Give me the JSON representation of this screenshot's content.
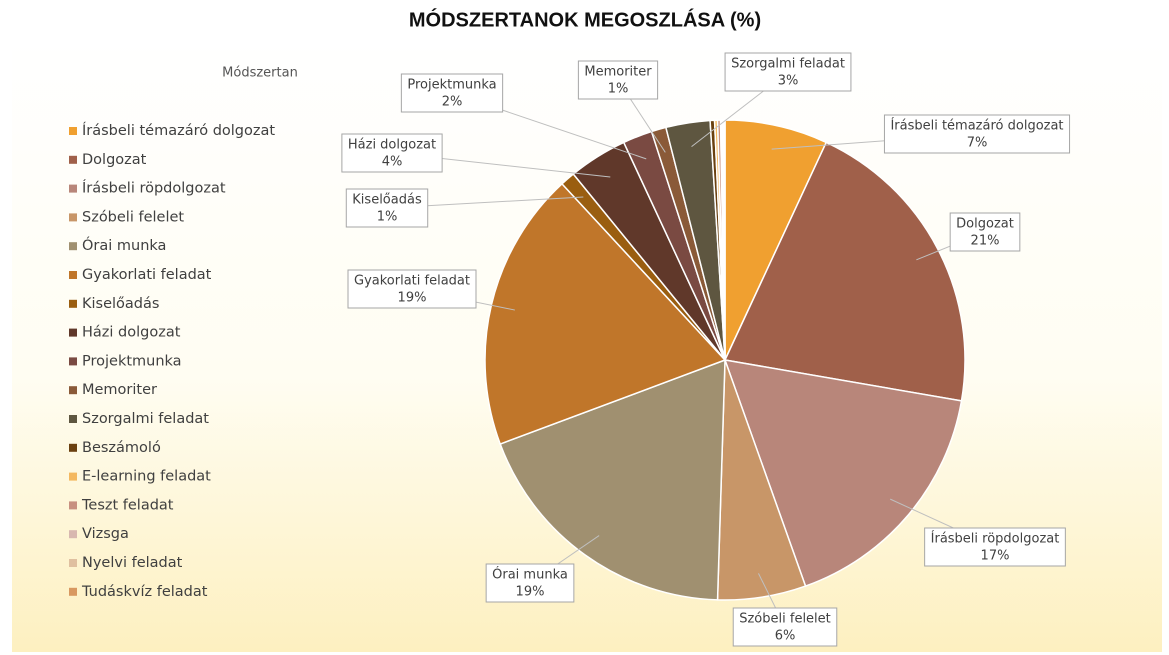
{
  "chart_data": {
    "type": "pie",
    "title": "MÓDSZERTANOK MEGOSZLÁSA (%)",
    "legend_title": "Módszertan",
    "categories": [
      "Írásbeli témazáró dolgozat",
      "Dolgozat",
      "Írásbeli röpdolgozat",
      "Szóbeli felelet",
      "Órai munka",
      "Gyakorlati feladat",
      "Kiselőadás",
      "Házi dolgozat",
      "Projektmunka",
      "Memoriter",
      "Szorgalmi feladat",
      "Beszámoló",
      "E-learning feladat",
      "Teszt feladat",
      "Vizsga",
      "Nyelvi feladat",
      "Tudáskvíz feladat"
    ],
    "values": [
      7,
      21,
      17,
      6,
      19,
      19,
      1,
      4,
      2,
      1,
      3,
      0.3,
      0.2,
      0.2,
      0.1,
      0.1,
      0.1
    ],
    "value_labels": [
      "7%",
      "21%",
      "17%",
      "6%",
      "19%",
      "19%",
      "1%",
      "4%",
      "2%",
      "1%",
      "3%",
      null,
      null,
      null,
      null,
      null,
      null
    ],
    "colors": [
      "#f0a030",
      "#a0604a",
      "#b8867a",
      "#c89668",
      "#a09070",
      "#c0762a",
      "#9a5e10",
      "#60382a",
      "#7a4a42",
      "#8a5a38",
      "#5e5640",
      "#6a4010",
      "#f4b860",
      "#c89080",
      "#d8b8b0",
      "#e0c0a0",
      "#d89860"
    ],
    "legend": "left"
  }
}
